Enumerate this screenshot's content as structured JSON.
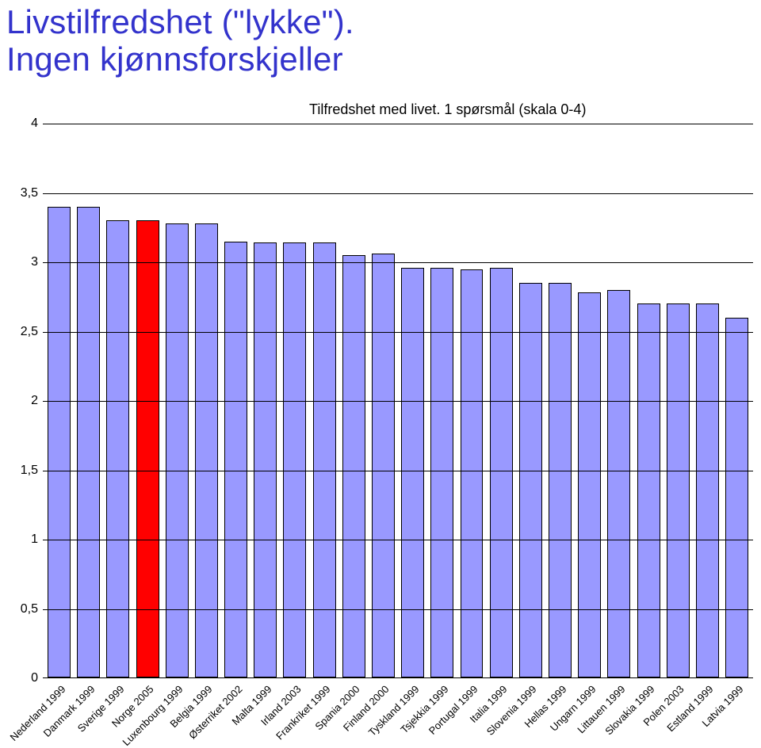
{
  "title_line1": "Livstilfredshet (\"lykke\").",
  "title_line2": "Ingen kjønnsforskjeller",
  "title_color": "#3333cc",
  "chart": {
    "type": "bar",
    "subtitle": "Tilfredshet med livet. 1 spørsmål (skala 0-4)",
    "subtitle_fontsize": 18,
    "x_label_fontsize": 13,
    "x_label_rotation_deg": -45,
    "y_axis": {
      "min": 0,
      "max": 4,
      "tick_step": 0.5,
      "ticks": [
        "0",
        "0,5",
        "1",
        "1,5",
        "2",
        "2,5",
        "3",
        "3,5",
        "4"
      ],
      "label_fontsize": 16
    },
    "grid_color": "#000000",
    "plot_background": "#ffffff",
    "default_bar_color": "#9999ff",
    "highlight_bar_color": "#ff0000",
    "bar_border_color": "#000000",
    "bar_width_ratio": 0.78,
    "categories": [
      "Nederland 1999",
      "Danmark 1999",
      "Sverige 1999",
      "Norge 2005",
      "Luxenbourg 1999",
      "Belgia 1999",
      "Østerriket 2002",
      "Malta 1999",
      "Irland 2003",
      "Frankriket 1999",
      "Spania 2000",
      "Finland 2000",
      "Tyskland 1999",
      "Tsjekkia 1999",
      "Portugal 1999",
      "Italia 1999",
      "Slovenia 1999",
      "Hellas 1999",
      "Ungarn 1999",
      "Littauen 1999",
      "Slovakia 1999",
      "Polen 2003",
      "Estland 1999",
      "Latvia 1999"
    ],
    "values": [
      3.4,
      3.4,
      3.3,
      3.3,
      3.28,
      3.28,
      3.15,
      3.14,
      3.14,
      3.14,
      3.05,
      3.06,
      2.96,
      2.96,
      2.95,
      2.96,
      2.85,
      2.85,
      2.78,
      2.8,
      2.7,
      2.7,
      2.7,
      2.6
    ],
    "highlight_index": 3
  }
}
